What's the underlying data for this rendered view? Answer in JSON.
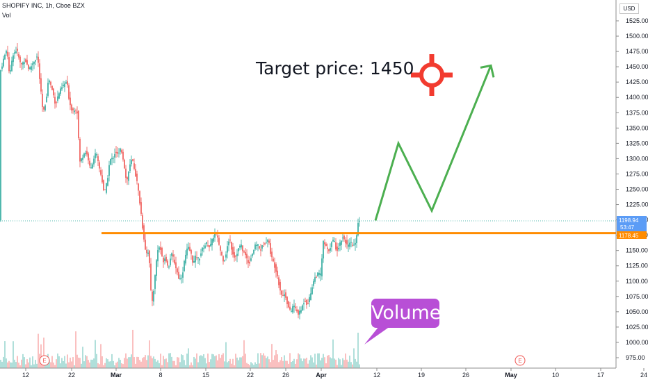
{
  "header": {
    "symbol_line": "SHOPIFY INC, 1h, Cboe BZX",
    "volume_label": "Vol"
  },
  "currency": "USD",
  "annotations": {
    "target_text": "Target price: 1450",
    "volume_callout": "Volume",
    "earnings_marker": "E"
  },
  "price_labels": {
    "last_price": "1198.94",
    "countdown": "53:47",
    "support_level": "1178.45"
  },
  "colors": {
    "up": "#26a69a",
    "down": "#ef5350",
    "support_line": "#ff8c00",
    "projection": "#4caf50",
    "target_icon": "#f23b2f",
    "callout": "#b84fd6",
    "last_price_tag": "#5b9cf6"
  },
  "chart_data": {
    "type": "candlestick",
    "title": "SHOPIFY INC, 1h, Cboe BZX",
    "x_tick_labels": [
      "12",
      "22",
      "Mar",
      "8",
      "15",
      "22",
      "26",
      "Apr",
      "12",
      "19",
      "26",
      "May",
      "10",
      "17",
      "24"
    ],
    "y_tick_labels": [
      "975.00",
      "1000.00",
      "1025.00",
      "1050.00",
      "1075.00",
      "1100.00",
      "1125.00",
      "1150.00",
      "1175.00",
      "1200.00",
      "1225.00",
      "1250.00",
      "1275.00",
      "1300.00",
      "1325.00",
      "1350.00",
      "1375.00",
      "1400.00",
      "1425.00",
      "1450.00",
      "1475.00",
      "1500.00",
      "1525.00"
    ],
    "ylim": [
      962,
      1530
    ],
    "price_path": [
      {
        "x": 0,
        "y": 1440
      },
      {
        "x": 5,
        "y": 1462
      },
      {
        "x": 10,
        "y": 1480
      },
      {
        "x": 14,
        "y": 1432
      },
      {
        "x": 18,
        "y": 1470
      },
      {
        "x": 24,
        "y": 1478
      },
      {
        "x": 30,
        "y": 1452
      },
      {
        "x": 36,
        "y": 1462
      },
      {
        "x": 42,
        "y": 1445
      },
      {
        "x": 48,
        "y": 1458
      },
      {
        "x": 54,
        "y": 1468
      },
      {
        "x": 58,
        "y": 1418
      },
      {
        "x": 62,
        "y": 1372
      },
      {
        "x": 66,
        "y": 1395
      },
      {
        "x": 70,
        "y": 1432
      },
      {
        "x": 76,
        "y": 1408
      },
      {
        "x": 80,
        "y": 1388
      },
      {
        "x": 84,
        "y": 1405
      },
      {
        "x": 90,
        "y": 1418
      },
      {
        "x": 96,
        "y": 1426
      },
      {
        "x": 100,
        "y": 1392
      },
      {
        "x": 104,
        "y": 1378
      },
      {
        "x": 108,
        "y": 1382
      },
      {
        "x": 112,
        "y": 1374
      },
      {
        "x": 114,
        "y": 1292
      },
      {
        "x": 118,
        "y": 1302
      },
      {
        "x": 122,
        "y": 1312
      },
      {
        "x": 126,
        "y": 1305
      },
      {
        "x": 130,
        "y": 1280
      },
      {
        "x": 134,
        "y": 1298
      },
      {
        "x": 138,
        "y": 1310
      },
      {
        "x": 142,
        "y": 1288
      },
      {
        "x": 146,
        "y": 1270
      },
      {
        "x": 150,
        "y": 1242
      },
      {
        "x": 154,
        "y": 1262
      },
      {
        "x": 158,
        "y": 1298
      },
      {
        "x": 162,
        "y": 1300
      },
      {
        "x": 166,
        "y": 1312
      },
      {
        "x": 170,
        "y": 1305
      },
      {
        "x": 174,
        "y": 1318
      },
      {
        "x": 178,
        "y": 1295
      },
      {
        "x": 182,
        "y": 1260
      },
      {
        "x": 186,
        "y": 1285
      },
      {
        "x": 190,
        "y": 1300
      },
      {
        "x": 194,
        "y": 1280
      },
      {
        "x": 198,
        "y": 1255
      },
      {
        "x": 202,
        "y": 1220
      },
      {
        "x": 206,
        "y": 1178
      },
      {
        "x": 210,
        "y": 1145
      },
      {
        "x": 214,
        "y": 1150
      },
      {
        "x": 218,
        "y": 1060
      },
      {
        "x": 222,
        "y": 1095
      },
      {
        "x": 226,
        "y": 1148
      },
      {
        "x": 230,
        "y": 1158
      },
      {
        "x": 234,
        "y": 1132
      },
      {
        "x": 238,
        "y": 1140
      },
      {
        "x": 242,
        "y": 1120
      },
      {
        "x": 246,
        "y": 1145
      },
      {
        "x": 250,
        "y": 1135
      },
      {
        "x": 254,
        "y": 1118
      },
      {
        "x": 258,
        "y": 1102
      },
      {
        "x": 262,
        "y": 1110
      },
      {
        "x": 266,
        "y": 1138
      },
      {
        "x": 270,
        "y": 1155
      },
      {
        "x": 274,
        "y": 1148
      },
      {
        "x": 278,
        "y": 1128
      },
      {
        "x": 282,
        "y": 1142
      },
      {
        "x": 286,
        "y": 1135
      },
      {
        "x": 290,
        "y": 1150
      },
      {
        "x": 294,
        "y": 1158
      },
      {
        "x": 298,
        "y": 1162
      },
      {
        "x": 302,
        "y": 1155
      },
      {
        "x": 306,
        "y": 1170
      },
      {
        "x": 310,
        "y": 1180
      },
      {
        "x": 314,
        "y": 1165
      },
      {
        "x": 318,
        "y": 1145
      },
      {
        "x": 322,
        "y": 1132
      },
      {
        "x": 326,
        "y": 1150
      },
      {
        "x": 330,
        "y": 1172
      },
      {
        "x": 334,
        "y": 1148
      },
      {
        "x": 338,
        "y": 1138
      },
      {
        "x": 342,
        "y": 1150
      },
      {
        "x": 346,
        "y": 1160
      },
      {
        "x": 350,
        "y": 1148
      },
      {
        "x": 354,
        "y": 1140
      },
      {
        "x": 358,
        "y": 1128
      },
      {
        "x": 362,
        "y": 1142
      },
      {
        "x": 366,
        "y": 1155
      },
      {
        "x": 370,
        "y": 1162
      },
      {
        "x": 374,
        "y": 1150
      },
      {
        "x": 378,
        "y": 1158
      },
      {
        "x": 382,
        "y": 1165
      },
      {
        "x": 386,
        "y": 1168
      },
      {
        "x": 390,
        "y": 1140
      },
      {
        "x": 394,
        "y": 1128
      },
      {
        "x": 398,
        "y": 1115
      },
      {
        "x": 402,
        "y": 1090
      },
      {
        "x": 406,
        "y": 1075
      },
      {
        "x": 410,
        "y": 1080
      },
      {
        "x": 414,
        "y": 1060
      },
      {
        "x": 418,
        "y": 1048
      },
      {
        "x": 422,
        "y": 1062
      },
      {
        "x": 426,
        "y": 1052
      },
      {
        "x": 430,
        "y": 1046
      },
      {
        "x": 434,
        "y": 1056
      },
      {
        "x": 438,
        "y": 1070
      },
      {
        "x": 442,
        "y": 1062
      },
      {
        "x": 446,
        "y": 1075
      },
      {
        "x": 450,
        "y": 1098
      },
      {
        "x": 454,
        "y": 1108
      },
      {
        "x": 458,
        "y": 1112
      },
      {
        "x": 462,
        "y": 1110
      },
      {
        "x": 464,
        "y": 1165
      },
      {
        "x": 468,
        "y": 1158
      },
      {
        "x": 472,
        "y": 1148
      },
      {
        "x": 476,
        "y": 1160
      },
      {
        "x": 480,
        "y": 1168
      },
      {
        "x": 484,
        "y": 1150
      },
      {
        "x": 488,
        "y": 1158
      },
      {
        "x": 492,
        "y": 1172
      },
      {
        "x": 496,
        "y": 1168
      },
      {
        "x": 500,
        "y": 1155
      },
      {
        "x": 504,
        "y": 1162
      },
      {
        "x": 508,
        "y": 1158
      },
      {
        "x": 512,
        "y": 1160
      },
      {
        "x": 514,
        "y": 1195
      },
      {
        "x": 517,
        "y": 1199
      }
    ],
    "support_level": 1178.45,
    "last_price": 1198.94,
    "projection_path": [
      {
        "x": 540,
        "y": 1199
      },
      {
        "x": 573,
        "y": 1325
      },
      {
        "x": 621,
        "y": 1215
      },
      {
        "x": 706,
        "y": 1452
      }
    ],
    "target_price": 1450,
    "grid": false,
    "legend": "none"
  }
}
